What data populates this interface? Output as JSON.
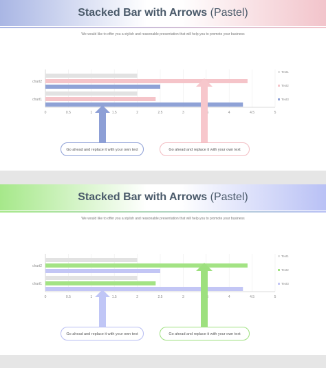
{
  "slides": [
    {
      "title_bold": "Stacked Bar with Arrows",
      "title_light": "(Pastel)",
      "subtitle": "We would like to offer you a stylish and reasonable presentation that will help you to promote your business",
      "banner_left_color": "#a9b6e4",
      "banner_right_color": "#f2c4cb",
      "callout_left": {
        "text": "Go ahead and replace it with your own text",
        "color": "#8d9fd6",
        "arrow_color": "#8d9fd6"
      },
      "callout_right": {
        "text": "Go ahead and replace it with your own text",
        "color": "#f2bcc2",
        "arrow_color": "#f7c7cc"
      },
      "colors": {
        "Text1": "#e2e2e2",
        "Text2": "#f5c4c9",
        "Text3": "#8fa2d6"
      }
    },
    {
      "title_bold": "Stacked Bar with Arrows",
      "title_light": "(Pastel)",
      "subtitle": "We would like to offer you a stylish and reasonable presentation that will help you to promote your business",
      "banner_left_color": "#a6e88a",
      "banner_right_color": "#b9c1f5",
      "callout_left": {
        "text": "Go ahead and replace it with your own text",
        "color": "#b7bdf2",
        "arrow_color": "#c0c6f6"
      },
      "callout_right": {
        "text": "Go ahead and replace it with your own text",
        "color": "#9de07e",
        "arrow_color": "#9de07e"
      },
      "colors": {
        "Text1": "#e2e2e2",
        "Text2": "#a3e384",
        "Text3": "#c3c6f5"
      }
    }
  ],
  "chart_data": {
    "type": "bar",
    "orientation": "horizontal",
    "categories": [
      "chart1",
      "chart2"
    ],
    "series": [
      {
        "name": "Text1",
        "values": [
          2,
          2
        ]
      },
      {
        "name": "Text2",
        "values": [
          2.4,
          4.4
        ]
      },
      {
        "name": "Text3",
        "values": [
          4.3,
          2.5
        ]
      }
    ],
    "x_ticks": [
      "0",
      "0.5",
      "1",
      "1.5",
      "2",
      "2.5",
      "3",
      "3.5",
      "4",
      "4.5",
      "5"
    ],
    "xlim": [
      0,
      5
    ],
    "grid": true,
    "legend_position": "right"
  }
}
